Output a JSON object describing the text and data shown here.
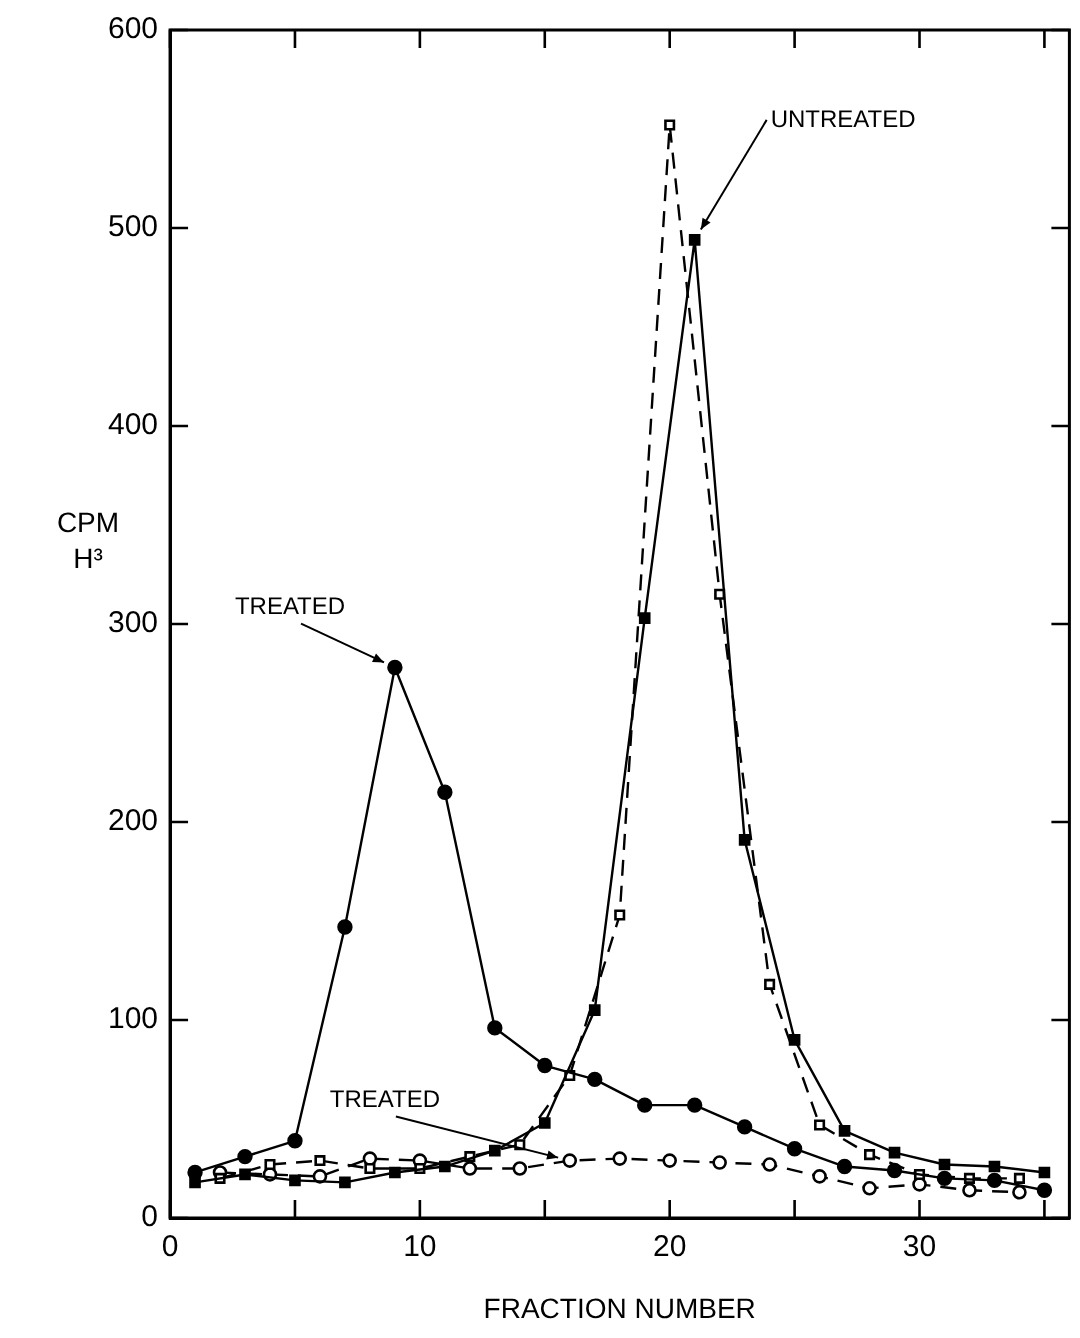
{
  "chart_data": {
    "type": "line",
    "xlabel": "FRACTION NUMBER",
    "ylabel": "CPM H³",
    "xlim": [
      0,
      36
    ],
    "xticks": [
      0,
      {
        "value": 5,
        "label": null
      },
      10,
      {
        "value": 15,
        "label": null
      },
      20,
      {
        "value": 25,
        "label": null
      },
      30,
      {
        "value": 35,
        "label": null
      }
    ],
    "ylim": [
      0,
      600
    ],
    "yticks": [
      0,
      100,
      200,
      300,
      400,
      500,
      600
    ],
    "grid": false,
    "legend": false,
    "series": [
      {
        "color": "#000000",
        "marker": "circle",
        "line_style": "solid",
        "x": [
          1,
          3,
          5,
          7,
          9,
          11,
          13,
          15,
          17,
          19,
          21,
          23,
          25,
          27,
          29,
          31,
          33,
          35
        ],
        "values": [
          23,
          31,
          39,
          147,
          278,
          215,
          96,
          77,
          70,
          57,
          57,
          46,
          35,
          26,
          24,
          20,
          19,
          14
        ]
      },
      {
        "color": "#000000",
        "marker": "square",
        "line_style": "solid",
        "x": [
          1,
          3,
          5,
          7,
          9,
          11,
          13,
          15,
          17,
          19,
          21,
          23,
          25,
          27,
          29,
          31,
          33,
          35
        ],
        "values": [
          18,
          22,
          19,
          18,
          23,
          26,
          34,
          48,
          105,
          303,
          494,
          191,
          90,
          44,
          33,
          27,
          26,
          23
        ]
      },
      {
        "color": "#000000",
        "marker": "square",
        "line_style": "dashed",
        "x": [
          2,
          4,
          6,
          8,
          10,
          12,
          14,
          16,
          18,
          20,
          22,
          24,
          26,
          28,
          30,
          32,
          34
        ],
        "values": [
          20,
          27,
          29,
          25,
          25,
          31,
          37,
          72,
          153,
          552,
          315,
          118,
          47,
          32,
          22,
          20,
          20
        ]
      },
      {
        "color": "#000000",
        "marker": "circle",
        "line_style": "dashed",
        "x": [
          2,
          4,
          6,
          8,
          10,
          12,
          14,
          16,
          18,
          20,
          22,
          24,
          26,
          28,
          30,
          32,
          34
        ],
        "values": [
          23,
          22,
          21,
          30,
          29,
          25,
          25,
          29,
          30,
          29,
          28,
          27,
          21,
          15,
          17,
          14,
          13
        ]
      }
    ],
    "annotations": [
      {
        "text": "UNTREATED",
        "x": 21,
        "y": 494
      },
      {
        "text": "TREATED",
        "x": 9,
        "y": 278
      },
      {
        "text": "TREATED",
        "x": 16,
        "y": 29
      }
    ]
  }
}
